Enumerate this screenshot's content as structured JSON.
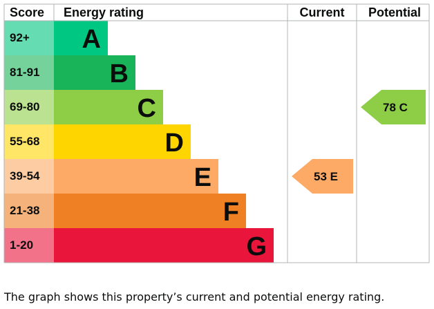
{
  "chart_data": {
    "type": "bar",
    "title": "",
    "headers": {
      "score": "Score",
      "rating": "Energy rating",
      "current": "Current",
      "potential": "Potential"
    },
    "bands": [
      {
        "score": "92+",
        "letter": "A",
        "color": "#00c781",
        "score_bg": "#66dcb3"
      },
      {
        "score": "81-91",
        "letter": "B",
        "color": "#19b459",
        "score_bg": "#75d29b"
      },
      {
        "score": "69-80",
        "letter": "C",
        "color": "#8dce46",
        "score_bg": "#bbe290"
      },
      {
        "score": "55-68",
        "letter": "D",
        "color": "#ffd500",
        "score_bg": "#ffe666"
      },
      {
        "score": "39-54",
        "letter": "E",
        "color": "#fcaa65",
        "score_bg": "#fdcca3"
      },
      {
        "score": "21-38",
        "letter": "F",
        "color": "#ef8023",
        "score_bg": "#f5b37b"
      },
      {
        "score": "1-20",
        "letter": "G",
        "color": "#e9153b",
        "score_bg": "#f27389"
      }
    ],
    "current": {
      "value": 53,
      "letter": "E",
      "label": "53 E",
      "color": "#fcaa65"
    },
    "potential": {
      "value": 78,
      "letter": "C",
      "label": "78 C",
      "color": "#8dce46"
    }
  },
  "caption": "The graph shows this property’s current and potential energy rating."
}
